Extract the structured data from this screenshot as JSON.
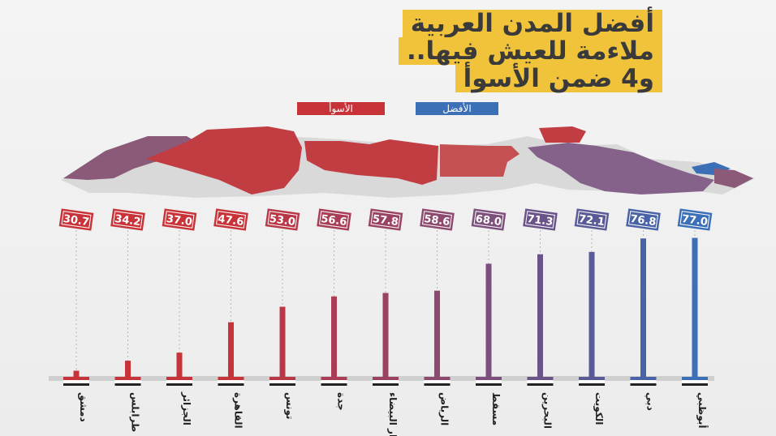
{
  "title": {
    "line1": "أفضل المدن العربية",
    "line2": "ملاءمة للعيش فيها..",
    "line3": "و4 ضمن الأسوأ"
  },
  "legend": {
    "best": "الأفضل",
    "worst": "الأسوأ",
    "best_color": "#3b6fb6",
    "worst_color": "#c8333a"
  },
  "chart_data": {
    "type": "bar",
    "categories": [
      "دمشق",
      "طرابلس",
      "الجزائر",
      "القاهرة",
      "تونس",
      "جدة",
      "الدار البيضاء",
      "الرياض",
      "مسقط",
      "البحرين",
      "الكويت",
      "دبي",
      "أبوظبي"
    ],
    "values": [
      30.7,
      34.2,
      37.0,
      47.6,
      53.0,
      56.6,
      57.8,
      58.6,
      68.0,
      71.3,
      72.1,
      76.8,
      77.0
    ],
    "labels": [
      "30.7",
      "34.2",
      "37.0",
      "47.6",
      "53.0",
      "56.6",
      "57.8",
      "58.6",
      "68.0",
      "71.3",
      "72.1",
      "76.8",
      "77.0"
    ],
    "colors": [
      "#c8333a",
      "#c8333a",
      "#c8333a",
      "#c8333a",
      "#b83848",
      "#a83d55",
      "#9a4262",
      "#8c4a6e",
      "#7d4f7c",
      "#6a5389",
      "#5a5a96",
      "#4a62a6",
      "#3b6fb6"
    ],
    "ylim": [
      28,
      78
    ]
  }
}
